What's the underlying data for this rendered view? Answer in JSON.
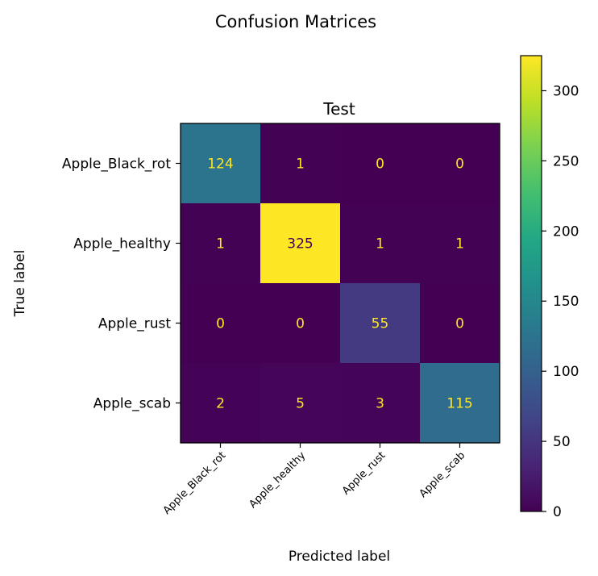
{
  "figure": {
    "suptitle": "Confusion Matrices"
  },
  "chart_data": {
    "type": "heatmap",
    "title": "Test",
    "xlabel": "Predicted label",
    "ylabel": "True label",
    "x_categories": [
      "Apple_Black_rot",
      "Apple_healthy",
      "Apple_rust",
      "Apple_scab"
    ],
    "y_categories": [
      "Apple_Black_rot",
      "Apple_healthy",
      "Apple_rust",
      "Apple_scab"
    ],
    "matrix": [
      [
        124,
        1,
        0,
        0
      ],
      [
        1,
        325,
        1,
        1
      ],
      [
        0,
        0,
        55,
        0
      ],
      [
        2,
        5,
        3,
        115
      ]
    ],
    "colormap": "viridis",
    "colorbar": {
      "range": [
        0,
        325
      ],
      "ticks": [
        0,
        50,
        100,
        150,
        200,
        250,
        300
      ]
    },
    "x_tick_rotation": 45,
    "annotation_colors": {
      "on_dark": "#fde725",
      "on_light": "#440154"
    }
  }
}
